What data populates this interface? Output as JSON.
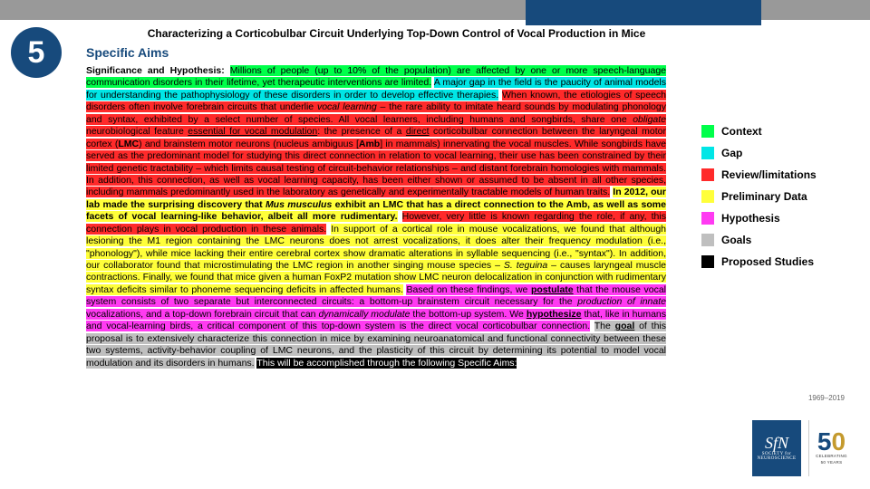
{
  "colors": {
    "accent": "#174a7c",
    "topbar": "#999999",
    "context": "#00ff4a",
    "gap": "#00e6e6",
    "review": "#ff2a2a",
    "prelim": "#ffff3a",
    "hypo": "#ff3af2",
    "goals": "#bfbfbf",
    "studies": "#000000"
  },
  "badge": {
    "number": "5"
  },
  "title": {
    "doc_title": "Characterizing a Corticobulbar Circuit Underlying Top-Down Control of Vocal Production in Mice",
    "aims_label": "Specific Aims"
  },
  "legend": {
    "context": "Context",
    "gap": "Gap",
    "review": "Review/limitations",
    "prelim": "Preliminary Data",
    "hypo": "Hypothesis",
    "goals": "Goals",
    "studies": "Proposed Studies"
  },
  "body": {
    "lead": "Significance and Hypothesis:",
    "seg_context": "Millions of people (up to 10% of the population) are affected by one or more speech-language communication disorders in their lifetime, yet therapeutic interventions are limited.",
    "seg_gap": "A major gap in the field is the paucity of animal models for understanding the pathophysiology of these disorders in order to develop effective therapies.",
    "seg_review1_a": "When known, the etiologies of speech disorders often involve forebrain circuits that underlie ",
    "seg_review1_b_i": "vocal learning",
    "seg_review1_c": " – the rare ability to imitate heard sounds by modulating phonology and syntax, exhibited by a select number of species. All vocal learners, including humans and songbirds, share one ",
    "seg_review1_d_i": "obligate",
    "seg_review1_e": " neurobiological feature ",
    "seg_review1_f_u": "essential for vocal modulation",
    "seg_review1_g": ": the presence of a ",
    "seg_review1_h_u": "direct",
    "seg_review1_i": " corticobulbar connection between the laryngeal motor cortex (",
    "seg_review1_j_b": "LMC",
    "seg_review1_k": ") and brainstem motor neurons (nucleus ambiguus [",
    "seg_review1_l_b": "Amb",
    "seg_review1_m": "] in mammals) innervating the vocal muscles. While songbirds have served as the predominant model for studying this direct connection in relation to vocal learning, their use has been constrained by their limited genetic tractability – which limits causal testing of circuit-behavior relationships – and distant forebrain homologies with mammals. In addition, this connection, as well as vocal learning capacity, has been either shown or assumed to be absent in all other species, including mammals predominantly used in the laboratory as genetically and experimentally tractable models of human traits.",
    "seg_prelim1_a": "In 2012, our lab made the surprising discovery that ",
    "seg_prelim1_b_ib": "Mus musculus",
    "seg_prelim1_c": " exhibit an LMC that has a direct connection to the Amb, as well as some facets of vocal learning-like behavior, albeit all more rudimentary.",
    "seg_review2": "However, very little is known regarding the role, if any, this connection plays in vocal production in these animals.",
    "seg_prelim2_a": "In support of a cortical role in mouse vocalizations, we found that although lesioning the M1 region containing the LMC neurons does not arrest vocalizations, it does alter their frequency modulation (i.e., \"phonology\"), while mice lacking their entire cerebral cortex show dramatic alterations in syllable sequencing (i.e., \"syntax\"). In addition, our collaborator found that microstimulating the LMC region in another singing mouse species – ",
    "seg_prelim2_b_i": "S. teguina",
    "seg_prelim2_c": " – causes laryngeal muscle contractions. Finally, we found that mice given a human FoxP2 mutation show LMC neuron delocalization in conjunction with rudimentary syntax deficits similar to phoneme sequencing deficits in affected humans.",
    "seg_hypo_a": "Based on these findings, we ",
    "seg_hypo_b_ub": "postulate",
    "seg_hypo_c": " that the mouse vocal system consists of two separate but interconnected circuits: a bottom-up brainstem circuit necessary for the ",
    "seg_hypo_d_i": "production of innate",
    "seg_hypo_e": " vocalizations, and a top-down forebrain circuit that can ",
    "seg_hypo_f_i": "dynamically modulate",
    "seg_hypo_g": " the bottom-up system. We ",
    "seg_hypo_h_ub": "hypothesize",
    "seg_hypo_i": " that, like in humans and vocal-learning birds, a critical component of this top-down system is the direct vocal corticobulbar connection.",
    "seg_goals_a": "The ",
    "seg_goals_b_ub": "goal",
    "seg_goals_c": " of this proposal is to extensively characterize this connection in mice by examining neuroanatomical and functional connectivity between these two systems, activity-behavior coupling of LMC neurons, and the plasticity of this circuit by determining its potential to model vocal modulation and its disorders in humans.",
    "seg_studies": "This will be accomplished through the following Specific Aims:"
  },
  "footer": {
    "date_range": "1969–2019",
    "sfn_letters": "SfN",
    "sfn_line1": "SOCIETY for",
    "sfn_line2": "NEUROSCIENCE",
    "fifty_5": "5",
    "fifty_0": "0",
    "fifty_line1": "CELEBRATING",
    "fifty_line2": "50 YEARS"
  }
}
